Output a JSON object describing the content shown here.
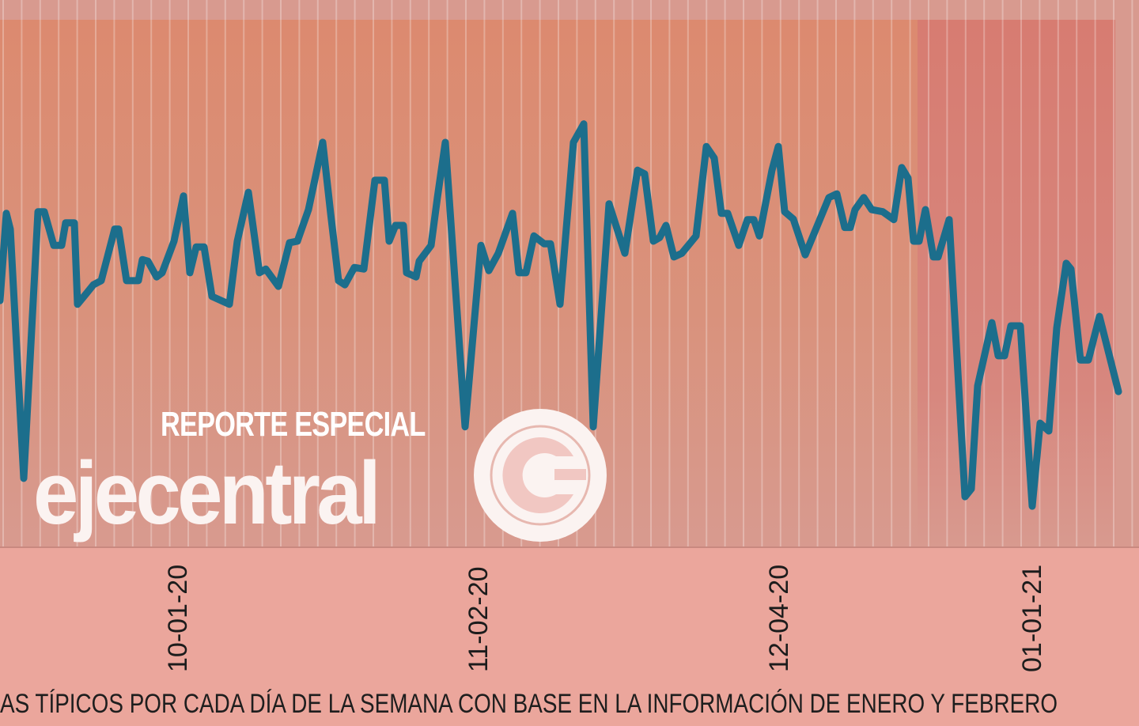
{
  "chart_data": {
    "type": "line",
    "title": "",
    "xlabel": "",
    "ylabel": "",
    "x_tick_labels": [
      "10-01-20",
      "11-02-20",
      "12-04-20",
      "01-01-21"
    ],
    "grid": "vertical lines",
    "y_scale_note": "",
    "series": [
      {
        "color": "#1c6e8c",
        "values": [
          46.6,
          63.2,
          60.2,
          12.8,
          63.5,
          63.5,
          57.1,
          57.1,
          61.4,
          61.4,
          45.9,
          48.1,
          49.6,
          50.4,
          60.2,
          60.2,
          50.4,
          50.4,
          54.4,
          54.1,
          51.1,
          51.9,
          57.9,
          66.5,
          51.9,
          56.8,
          56.8,
          47.4,
          45.9,
          57.9,
          67.2,
          51.9,
          52.6,
          49.3,
          57.6,
          57.9,
          63.9,
          76.7,
          63.2,
          50.4,
          49.6,
          52.9,
          52.6,
          69.5,
          69.5,
          57.9,
          60.9,
          60.9,
          51.9,
          51.1,
          54.1,
          57.1,
          66.2,
          76.7,
          22.6,
          57.1,
          52.3,
          55.6,
          63.2,
          51.9,
          51.9,
          58.9,
          57.4,
          57.4,
          45.9,
          76.7,
          80.2,
          22.6,
          65.0,
          55.6,
          71.4,
          70.7,
          57.9,
          58.6,
          60.9,
          54.9,
          55.6,
          58.9,
          75.9,
          73.7,
          63.2,
          63.2,
          57.1,
          62.0,
          62.0,
          58.9,
          71.4,
          75.9,
          63.5,
          62.1,
          55.3,
          66.2,
          66.9,
          60.5,
          60.5,
          63.9,
          66.2,
          63.9,
          63.5,
          62.0,
          71.9,
          69.9,
          57.9,
          57.9,
          63.9,
          54.9,
          54.9,
          62.0,
          9.3,
          10.8,
          30.4,
          42.4,
          36.1,
          36.1,
          41.8,
          41.8,
          7.5,
          23.3,
          21.8,
          41.4,
          53.7,
          52.6,
          35.3,
          35.3,
          43.6,
          29.3
        ]
      }
    ],
    "background_colors": {
      "plot": "#d89a8f",
      "highlight_band": "#dc8a6f",
      "recent_band": "#d77c71",
      "below_axis": "#eba69c"
    }
  },
  "caption": "AS TÍPICOS POR CADA DÍA DE LA SEMANA CON BASE EN LA INFORMACIÓN DE ENERO Y FEBRERO",
  "watermark": {
    "subtitle": "REPORTE ESPECIAL",
    "brand": "ejecentral",
    "color": "#ffffff"
  }
}
